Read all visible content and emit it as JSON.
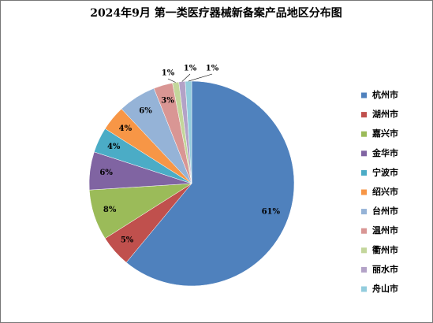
{
  "chart_data": {
    "type": "pie",
    "title": "2024年9月 第一类医疗器械新备案产品地区分布图",
    "categories": [
      "杭州市",
      "湖州市",
      "嘉兴市",
      "金华市",
      "宁波市",
      "绍兴市",
      "台州市",
      "温州市",
      "衢州市",
      "丽水市",
      "舟山市"
    ],
    "values": [
      61,
      5,
      8,
      6,
      4,
      4,
      6,
      3,
      1,
      1,
      1
    ],
    "value_labels": [
      "61%",
      "5%",
      "8%",
      "6%",
      "4%",
      "4%",
      "6%",
      "3%",
      "1%",
      "1%",
      "1%"
    ],
    "colors": [
      "#4F81BD",
      "#C0504D",
      "#9BBB59",
      "#8064A2",
      "#4BACC6",
      "#F79646",
      "#95B3D7",
      "#D99694",
      "#C3D69B",
      "#B3A2C7",
      "#93CDDD"
    ],
    "legend": "right"
  }
}
